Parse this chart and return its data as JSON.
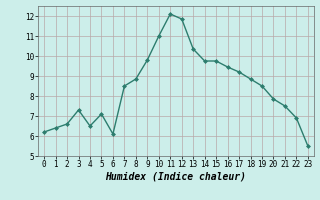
{
  "x": [
    0,
    1,
    2,
    3,
    4,
    5,
    6,
    7,
    8,
    9,
    10,
    11,
    12,
    13,
    14,
    15,
    16,
    17,
    18,
    19,
    20,
    21,
    22,
    23
  ],
  "y": [
    6.2,
    6.4,
    6.6,
    7.3,
    6.5,
    7.1,
    6.1,
    8.5,
    8.85,
    9.8,
    11.0,
    12.1,
    11.85,
    10.35,
    9.75,
    9.75,
    9.45,
    9.2,
    8.85,
    8.5,
    7.85,
    7.5,
    6.9,
    5.5
  ],
  "line_color": "#2d7d6e",
  "marker": "D",
  "marker_size": 2.0,
  "bg_color": "#cceeea",
  "grid_color_major": "#b8a8a8",
  "grid_color_minor": "#ddd0d0",
  "xlabel": "Humidex (Indice chaleur)",
  "ylim": [
    5,
    12.5
  ],
  "xlim": [
    -0.5,
    23.5
  ],
  "yticks": [
    5,
    6,
    7,
    8,
    9,
    10,
    11,
    12
  ],
  "xticks": [
    0,
    1,
    2,
    3,
    4,
    5,
    6,
    7,
    8,
    9,
    10,
    11,
    12,
    13,
    14,
    15,
    16,
    17,
    18,
    19,
    20,
    21,
    22,
    23
  ],
  "tick_fontsize": 5.5,
  "xlabel_fontsize": 7.0,
  "line_width": 1.0
}
